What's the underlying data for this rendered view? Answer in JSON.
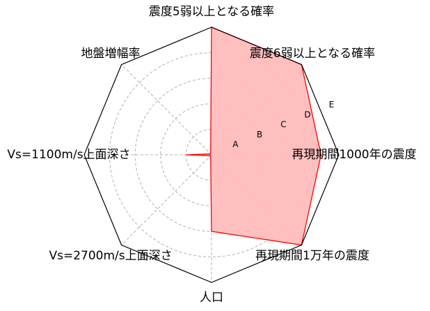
{
  "chart_data": {
    "type": "radar",
    "axes": [
      "震度5弱以上となる確率",
      "震度6弱以上となる確率",
      "再現期間1000年の震度",
      "再現期間1万年の震度",
      "人口",
      "Vs=2700m/s上面深さ",
      "Vs=1100m/s上面深さ",
      "地盤増幅率"
    ],
    "ring_labels": [
      "A",
      "B",
      "C",
      "D",
      "E"
    ],
    "rmax": 5,
    "values": [
      5,
      5,
      4.3,
      5,
      3,
      0.05,
      1,
      0.05
    ],
    "grid": true,
    "colors": {
      "fill": "#ffbcbc",
      "stroke": "#ff0000",
      "frame": "#000000",
      "grid": "#b0b0b0"
    }
  }
}
